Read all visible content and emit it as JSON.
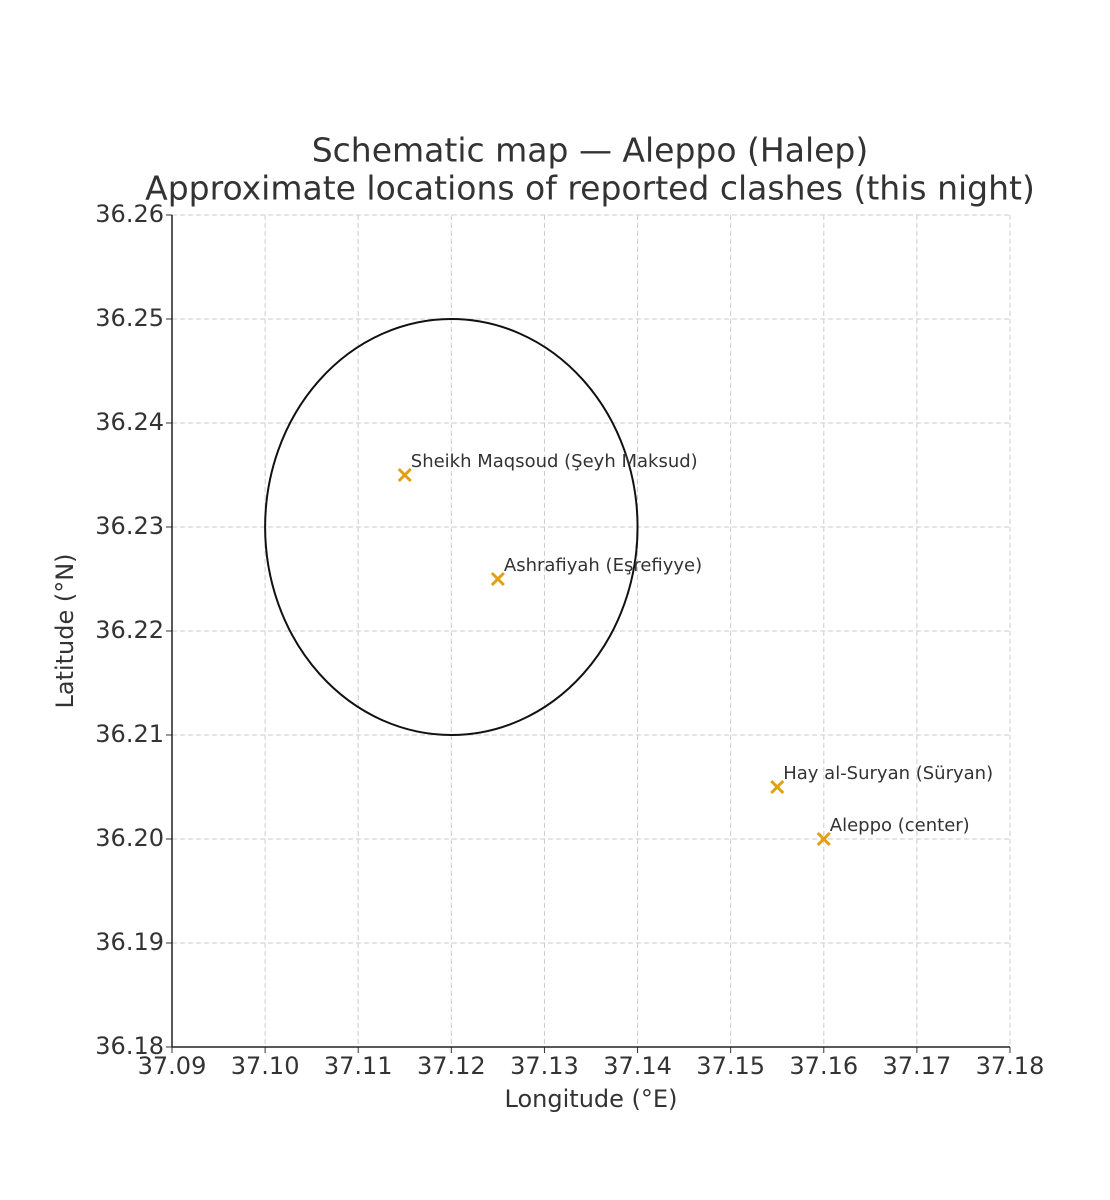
{
  "chart_data": {
    "type": "scatter",
    "title": "Schematic map — Aleppo (Halep)",
    "subtitle": "Approximate locations of reported clashes (this night)",
    "x_label": "Longitude (°E)",
    "y_label": "Latitude (°N)",
    "xlim": [
      37.09,
      37.18
    ],
    "xticks": [
      37.09,
      {
        "value": 37.1,
        "label": "37.10"
      },
      37.11,
      37.12,
      37.13,
      37.14,
      37.15,
      37.16,
      37.17,
      37.18
    ],
    "ylim": [
      36.18,
      36.26
    ],
    "yticks": [
      36.18,
      36.19,
      {
        "value": 36.2,
        "label": "36.20"
      },
      36.21,
      36.22,
      36.23,
      36.24,
      36.25,
      36.26
    ],
    "grid": true,
    "marker_color": "#e0a010",
    "circle": {
      "x": 37.12,
      "y": 36.23,
      "radius": 0.02
    },
    "points": [
      {
        "label": "Sheikh Maqsoud (Şeyh Maksud)",
        "x": 37.115,
        "y": 36.235
      },
      {
        "label": "Ashrafiyah (Eşrefiyye)",
        "x": 37.125,
        "y": 36.225
      },
      {
        "label": "Hay al-Suryan (Süryan)",
        "x": 37.155,
        "y": 36.205
      },
      {
        "label": "Aleppo (center)",
        "x": 37.16,
        "y": 36.2
      }
    ]
  }
}
